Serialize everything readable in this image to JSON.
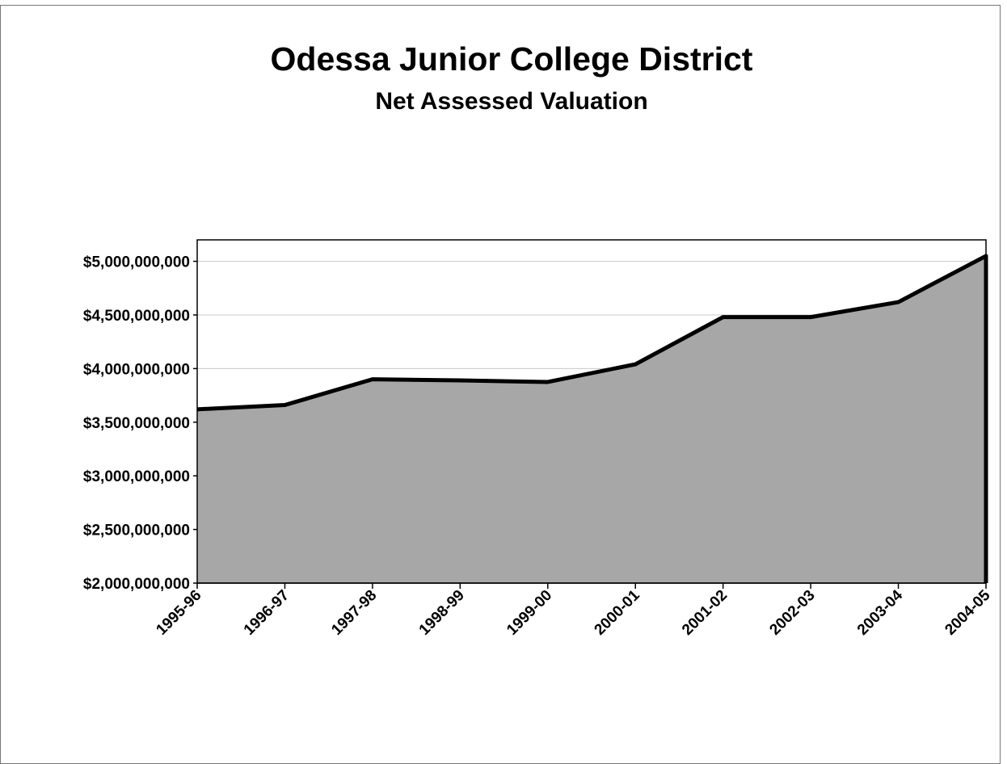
{
  "chart_data": {
    "type": "area",
    "title": "Odessa Junior College District",
    "subtitle": "Net Assessed Valuation",
    "xlabel": "",
    "ylabel": "",
    "categories": [
      "1995-96",
      "1996-97",
      "1997-98",
      "1998-99",
      "1999-00",
      "2000-01",
      "2001-02",
      "2002-03",
      "2003-04",
      "2004-05"
    ],
    "series": [
      {
        "values": [
          3620000000,
          3660000000,
          3900000000,
          3890000000,
          3875000000,
          4040000000,
          4480000000,
          4480000000,
          4620000000,
          5050000000
        ]
      }
    ],
    "ylim": [
      2000000000,
      5200000000
    ],
    "yticks": [
      2000000000,
      2500000000,
      3000000000,
      3500000000,
      4000000000,
      4500000000,
      5000000000
    ],
    "ytick_labels": [
      "$2,000,000,000",
      "$2,500,000,000",
      "$3,000,000,000",
      "$3,500,000,000",
      "$4,000,000,000",
      "$4,500,000,000",
      "$5,000,000,000"
    ],
    "grid": true,
    "legend": "none",
    "fill_color": "#a7a7a7",
    "line_color": "#000000"
  }
}
